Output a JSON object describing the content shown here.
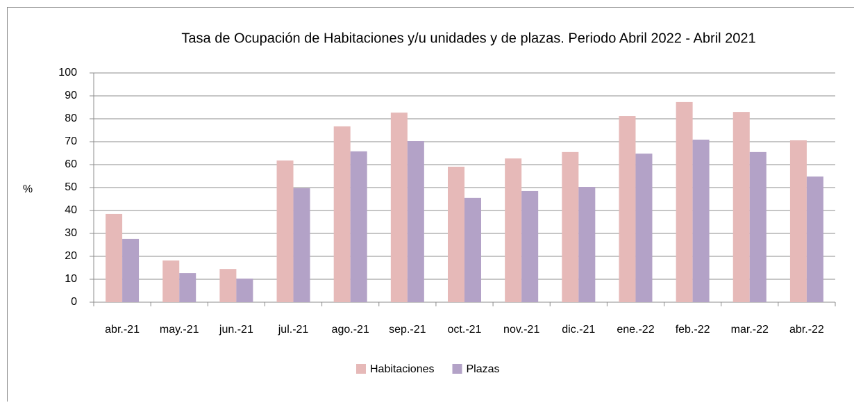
{
  "chart_data": {
    "type": "bar",
    "title": "Tasa de Ocupación de Habitaciones y/u unidades y de plazas. Periodo Abril 2022 - Abril 2021",
    "y_label": "%",
    "categories": [
      "abr.-21",
      "may.-21",
      "jun.-21",
      "jul.-21",
      "ago.-21",
      "sep.-21",
      "oct.-21",
      "nov.-21",
      "dic.-21",
      "ene.-22",
      "feb.-22",
      "mar.-22",
      "abr.-22"
    ],
    "series": [
      {
        "name": "Habitaciones",
        "color": "#e6b9b8",
        "values": [
          38.5,
          18.2,
          14.5,
          61.8,
          76.7,
          82.7,
          59.1,
          62.7,
          65.5,
          81.2,
          87.3,
          83.0,
          70.6
        ]
      },
      {
        "name": "Plazas",
        "color": "#b3a2c7",
        "values": [
          27.6,
          12.7,
          10.3,
          49.7,
          65.8,
          70.3,
          45.5,
          48.5,
          50.3,
          64.8,
          70.9,
          65.5,
          54.8
        ]
      }
    ],
    "ylim": [
      0,
      100
    ],
    "yticks": [
      0,
      10,
      20,
      30,
      40,
      50,
      60,
      70,
      80,
      90,
      100
    ],
    "grid": true,
    "legend": "bottom"
  }
}
